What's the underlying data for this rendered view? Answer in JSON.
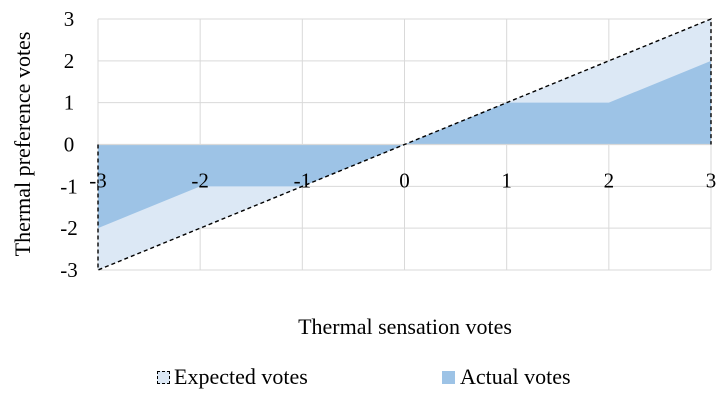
{
  "chart_data": {
    "type": "area",
    "title": "",
    "xlabel": "Thermal sensation votes",
    "ylabel": "Thermal preference votes",
    "x": [
      -3,
      -2,
      -1,
      0,
      1,
      2,
      3
    ],
    "x_tick_labels": [
      "-3",
      "-2",
      "-1",
      "0",
      "1",
      "2",
      "3"
    ],
    "y_tick_labels": [
      "3",
      "2",
      "1",
      "0",
      "-1",
      "-2",
      "-3"
    ],
    "xlim": [
      -3,
      3
    ],
    "ylim": [
      -3,
      3
    ],
    "grid": true,
    "legend_position": "bottom",
    "series": [
      {
        "name": "Expected votes",
        "values": [
          -3,
          -2,
          -1,
          0,
          1,
          2,
          3
        ],
        "fill": "#dce8f5",
        "stroke": "#000000",
        "line_style": "dashed"
      },
      {
        "name": "Actual votes",
        "values": [
          -2,
          -1,
          -1,
          0,
          1,
          1,
          2
        ],
        "fill": "#9dc3e6"
      }
    ]
  }
}
